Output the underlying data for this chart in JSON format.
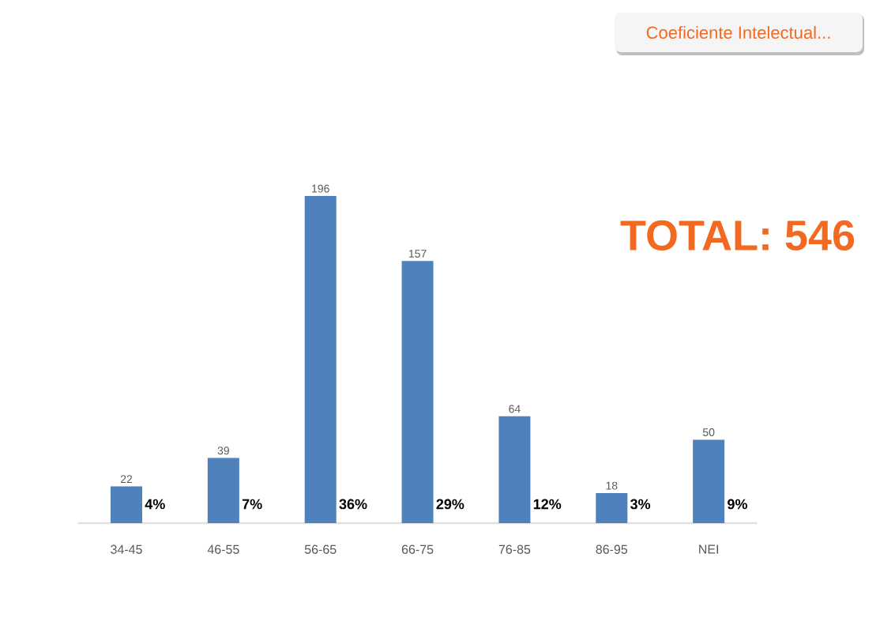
{
  "chart_data": {
    "type": "bar",
    "title": "Coeficiente Intelectual...",
    "categories": [
      "34-45",
      "46-55",
      "56-65",
      "66-75",
      "76-85",
      "86-95",
      "NEI"
    ],
    "values": [
      22,
      39,
      196,
      157,
      64,
      18,
      50
    ],
    "color": "#4f81bd",
    "data_labels": true,
    "annotations": [
      "TOTAL: 546",
      "4%",
      "7%",
      "36%",
      "29%",
      "12%",
      "3%",
      "9%"
    ]
  }
}
